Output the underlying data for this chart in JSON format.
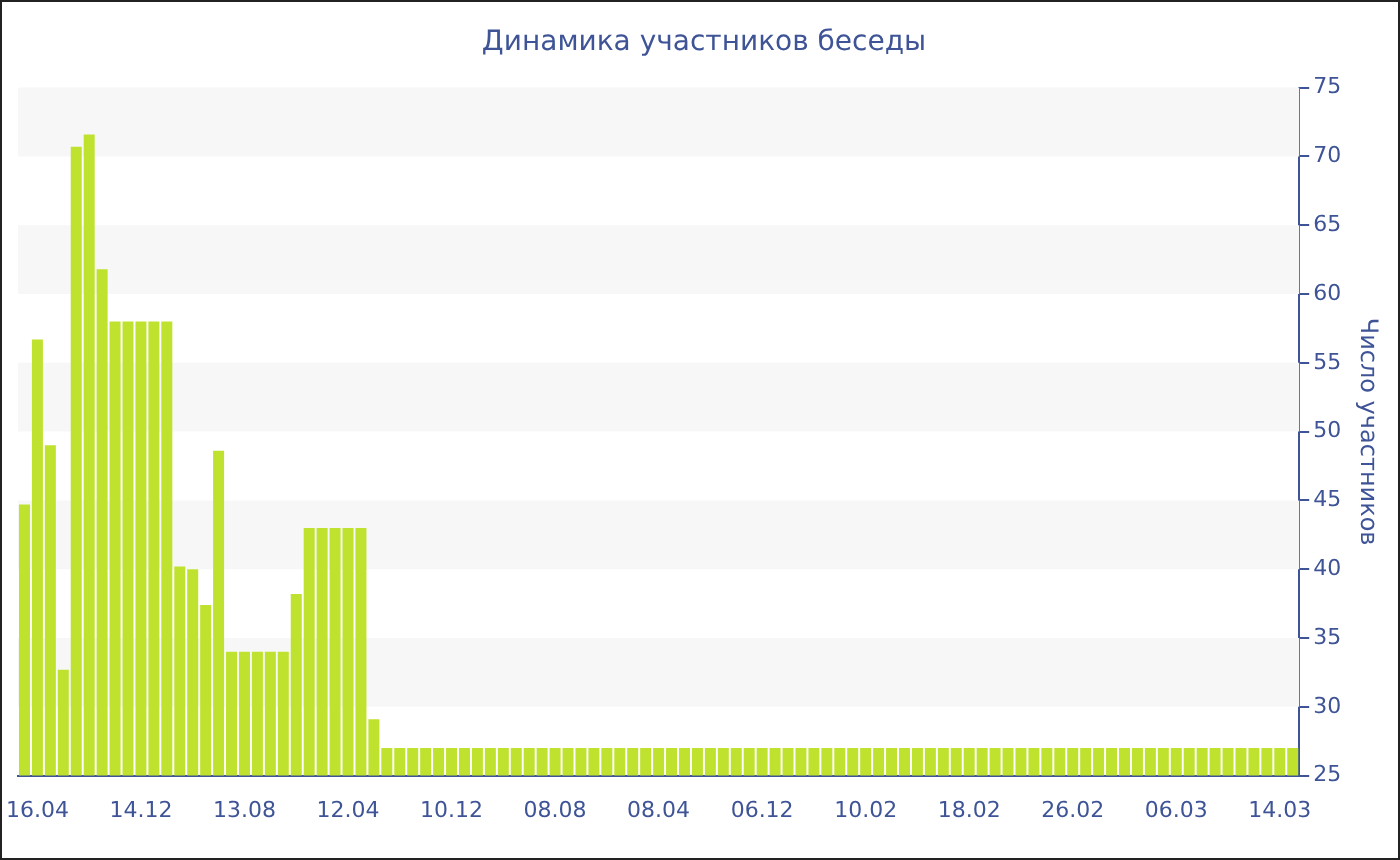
{
  "chart_data": {
    "type": "bar",
    "title": "Динамика участников беседы",
    "ylabel": "Число участников",
    "categories": [
      null,
      "16.04",
      null,
      null,
      null,
      null,
      null,
      null,
      null,
      "14.12",
      null,
      null,
      null,
      null,
      null,
      null,
      null,
      "13.08",
      null,
      null,
      null,
      null,
      null,
      null,
      null,
      "12.04",
      null,
      null,
      null,
      null,
      null,
      null,
      null,
      "10.12",
      null,
      null,
      null,
      null,
      null,
      null,
      null,
      "08.08",
      null,
      null,
      null,
      null,
      null,
      null,
      null,
      "08.04",
      null,
      null,
      null,
      null,
      null,
      null,
      null,
      "06.12",
      null,
      null,
      null,
      null,
      null,
      null,
      null,
      "10.02",
      null,
      null,
      null,
      null,
      null,
      null,
      null,
      "18.02",
      null,
      null,
      null,
      null,
      null,
      null,
      null,
      "26.02",
      null,
      null,
      null,
      null,
      null,
      null,
      null,
      "06.03",
      null,
      null,
      null,
      null,
      null,
      null,
      null,
      "14.03",
      null
    ],
    "values": [
      44.7,
      56.7,
      49,
      32.7,
      70.7,
      71.6,
      61.8,
      58,
      58,
      58,
      58,
      58,
      40.2,
      40,
      37.4,
      48.6,
      34,
      34,
      34,
      34,
      34,
      38.2,
      43,
      43,
      43,
      43,
      43,
      29.1,
      27,
      27,
      27,
      27,
      27,
      27,
      27,
      27,
      27,
      27,
      27,
      27,
      27,
      27,
      27,
      27,
      27,
      27,
      27,
      27,
      27,
      27,
      27,
      27,
      27,
      27,
      27,
      27,
      27,
      27,
      27,
      27,
      27,
      27,
      27,
      27,
      27,
      27,
      27,
      27,
      27,
      27,
      27,
      27,
      27,
      27,
      27,
      27,
      27,
      27,
      27,
      27,
      27,
      27,
      27,
      27,
      27,
      27,
      27,
      27,
      27,
      27,
      27,
      27,
      27,
      27,
      27,
      27,
      27,
      27,
      27
    ],
    "color": "#bfe22f",
    "ylim": [
      25,
      75
    ],
    "yticks": [
      25,
      30,
      35,
      40,
      45,
      50,
      55,
      60,
      65,
      70,
      75
    ],
    "bands": [
      {
        "axis": "y",
        "from": 30,
        "to": 35,
        "color": "#f7f7f7"
      },
      {
        "axis": "y",
        "from": 40,
        "to": 45,
        "color": "#f7f7f7"
      },
      {
        "axis": "y",
        "from": 50,
        "to": 55,
        "color": "#f7f7f7"
      },
      {
        "axis": "y",
        "from": 60,
        "to": 65,
        "color": "#f7f7f7"
      },
      {
        "axis": "y",
        "from": 70,
        "to": 75,
        "color": "#f7f7f7"
      }
    ],
    "legend": false
  }
}
